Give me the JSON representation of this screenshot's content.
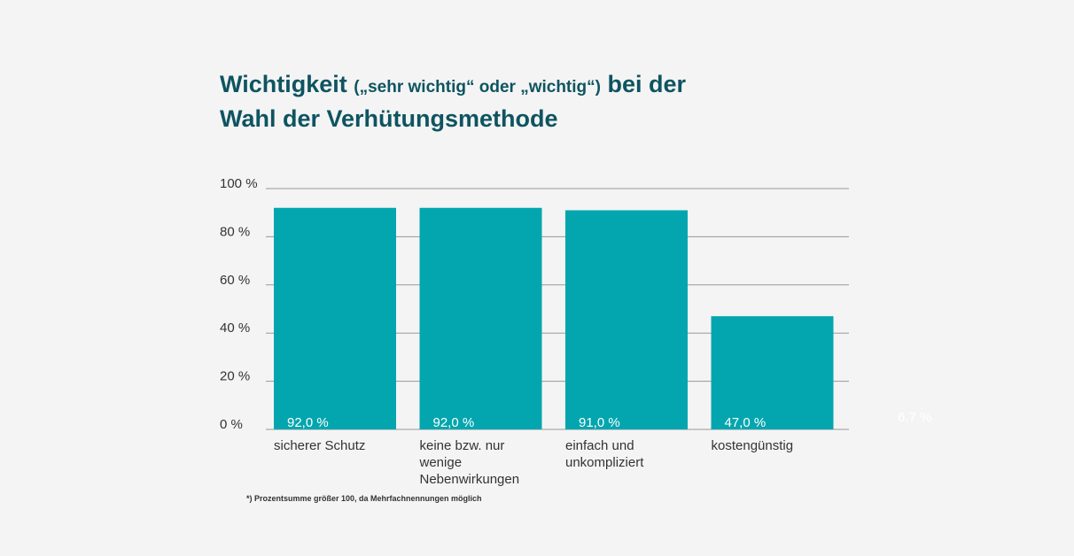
{
  "title": {
    "part1": "Wichtigkeit ",
    "part2": "(„sehr wichtig“ oder „wichtig“)",
    "part3": " bei der",
    "line2": "Wahl der Verhütungsmethode"
  },
  "footnote": "*) Prozentsumme größer 100, da Mehrfachnennungen möglich",
  "stray_label": "6,7 %",
  "colors": {
    "bar": "#03a6ae",
    "title": "#0e5461",
    "grid": "#999999",
    "background": "#f4f4f4"
  },
  "chart_data": {
    "type": "bar",
    "categories": [
      [
        "sicherer Schutz"
      ],
      [
        "keine bzw. nur",
        "wenige",
        "Nebenwirkungen"
      ],
      [
        "einfach und",
        "unkompliziert"
      ],
      [
        "kostengünstig"
      ]
    ],
    "values": [
      92.0,
      92.0,
      91.0,
      47.0
    ],
    "data_labels": [
      "92,0 %",
      "92,0 %",
      "91,0 %",
      "47,0 %"
    ],
    "yticks": [
      0,
      20,
      40,
      60,
      80,
      100
    ],
    "ytick_labels": [
      "0 %",
      "20 %",
      "40 %",
      "60 %",
      "80 %",
      "100 %"
    ],
    "ylim": [
      0,
      100
    ],
    "grid": true,
    "legend": "none"
  }
}
